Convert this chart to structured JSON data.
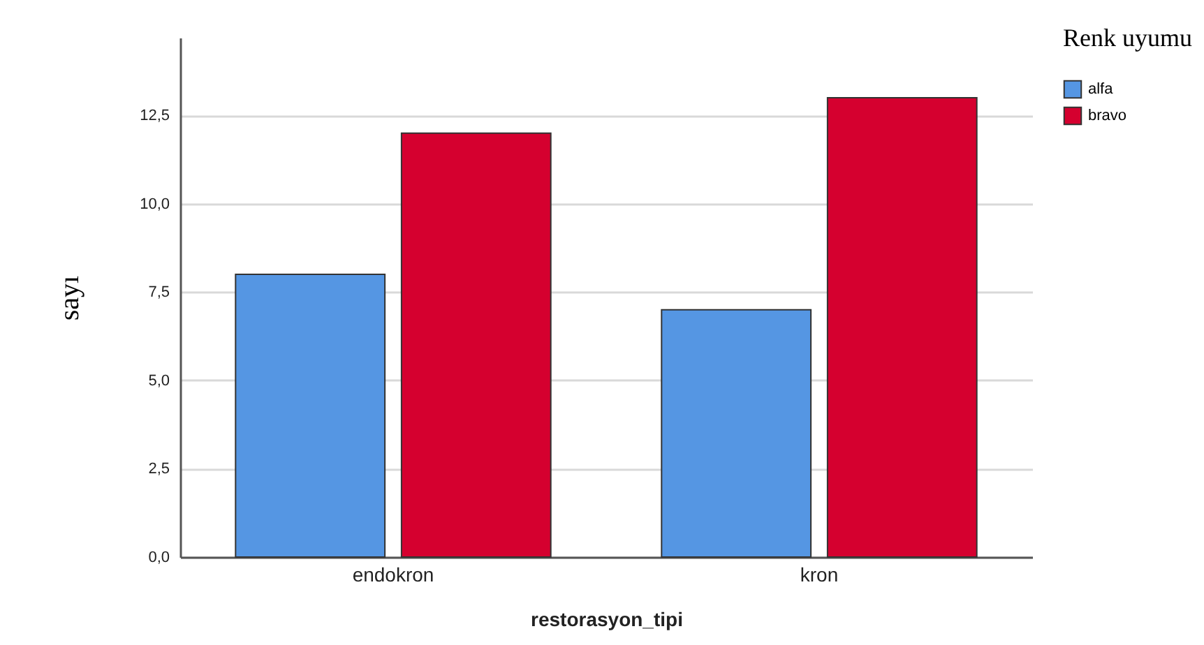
{
  "chart_data": {
    "type": "bar",
    "categories": [
      "endokron",
      "kron"
    ],
    "series": [
      {
        "name": "alfa",
        "color": "#5596e3",
        "values": [
          8,
          7
        ]
      },
      {
        "name": "bravo",
        "color": "#d5002f",
        "values": [
          12,
          13
        ]
      }
    ],
    "xlabel": "restorasyon_tipi",
    "ylabel": "sayı",
    "legend_title": "Renk uyumu",
    "ylim": [
      0,
      14.7
    ],
    "yticks": [
      {
        "value": 0,
        "label": "0,0"
      },
      {
        "value": 2.5,
        "label": "2,5"
      },
      {
        "value": 5,
        "label": "5,0"
      },
      {
        "value": 7.5,
        "label": "7,5"
      },
      {
        "value": 10,
        "label": "10,0"
      },
      {
        "value": 12.5,
        "label": "12,5"
      }
    ],
    "grid": "y",
    "legend": "top right"
  }
}
